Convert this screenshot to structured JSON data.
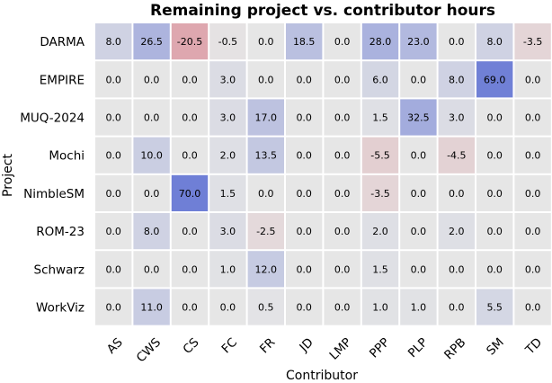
{
  "chart_data": {
    "type": "heatmap",
    "title": "Remaining project vs. contributor hours",
    "xlabel": "Contributor",
    "ylabel": "Project",
    "x_categories": [
      "AS",
      "CWS",
      "CS",
      "FC",
      "FR",
      "JD",
      "LMP",
      "PPP",
      "PLP",
      "RPB",
      "SM",
      "TD"
    ],
    "y_categories": [
      "DARMA",
      "EMPIRE",
      "MUQ-2024",
      "Mochi",
      "NimbleSM",
      "ROM-23",
      "Schwarz",
      "WorkViz"
    ],
    "values": [
      [
        8.0,
        26.5,
        -20.5,
        -0.5,
        0.0,
        18.5,
        0.0,
        28.0,
        23.0,
        0.0,
        8.0,
        -3.5
      ],
      [
        0.0,
        0.0,
        0.0,
        3.0,
        0.0,
        0.0,
        0.0,
        6.0,
        0.0,
        8.0,
        69.0,
        0.0
      ],
      [
        0.0,
        0.0,
        0.0,
        3.0,
        17.0,
        0.0,
        0.0,
        1.5,
        32.5,
        3.0,
        0.0,
        0.0
      ],
      [
        0.0,
        10.0,
        0.0,
        2.0,
        13.5,
        0.0,
        0.0,
        -5.5,
        0.0,
        -4.5,
        0.0,
        0.0
      ],
      [
        0.0,
        0.0,
        70.0,
        1.5,
        0.0,
        0.0,
        0.0,
        -3.5,
        0.0,
        0.0,
        0.0,
        0.0
      ],
      [
        0.0,
        8.0,
        0.0,
        3.0,
        -2.5,
        0.0,
        0.0,
        2.0,
        0.0,
        2.0,
        0.0,
        0.0
      ],
      [
        0.0,
        0.0,
        0.0,
        1.0,
        12.0,
        0.0,
        0.0,
        1.5,
        0.0,
        0.0,
        0.0,
        0.0
      ],
      [
        0.0,
        11.0,
        0.0,
        0.0,
        0.5,
        0.0,
        0.0,
        1.0,
        1.0,
        0.0,
        5.5,
        0.0
      ]
    ],
    "value_format": "one-decimal",
    "colormap": "coolwarm-like",
    "colors": {
      "zero": "#e6e6e6",
      "positive_max": "#6f7fd6",
      "negative_max": "#d1495b",
      "cell_border": "#ffffff",
      "background": "#ffffff"
    },
    "grid": false,
    "legend": "none"
  }
}
